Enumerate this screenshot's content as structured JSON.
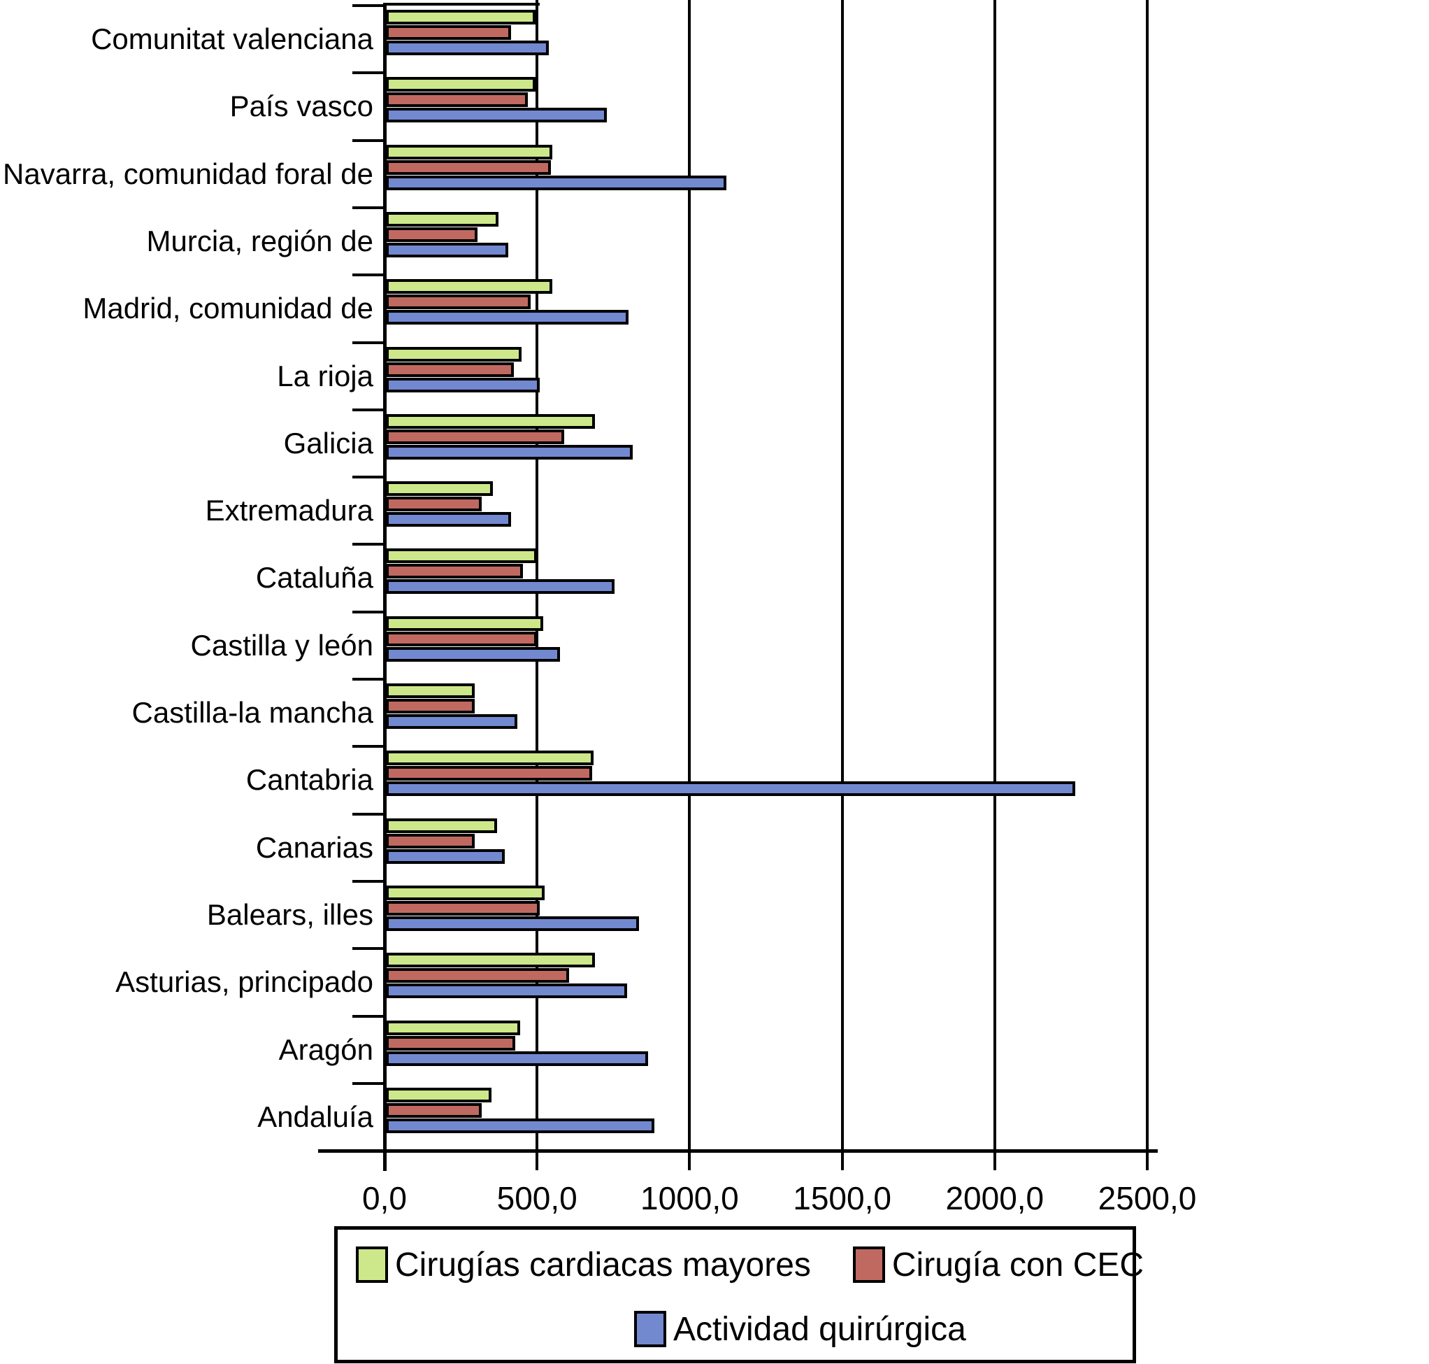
{
  "chart_data": {
    "type": "bar",
    "orientation": "horizontal",
    "title": "",
    "categories": [
      "Comunitat valenciana",
      "País vasco",
      "Navarra, comunidad foral de",
      "Murcia, región de",
      "Madrid, comunidad de",
      "La rioja",
      "Galicia",
      "Extremadura",
      "Cataluña",
      "Castilla y león",
      "Castilla-la mancha",
      "Cantabria",
      "Canarias",
      "Balears, illes",
      "Asturias, principado",
      "Aragón",
      "Andaluía"
    ],
    "series": [
      {
        "name": "Cirugías cardiacas mayores",
        "color": "#cde88a",
        "values": [
          490,
          490,
          545,
          370,
          545,
          445,
          685,
          350,
          495,
          515,
          290,
          680,
          365,
          520,
          685,
          440,
          345
        ]
      },
      {
        "name": "Cirugía con CEC",
        "color": "#c06961",
        "values": [
          410,
          465,
          540,
          300,
          475,
          420,
          585,
          315,
          450,
          495,
          290,
          675,
          290,
          505,
          600,
          425,
          315
        ]
      },
      {
        "name": "Actividad quirúrgica",
        "color": "#7289d0",
        "values": [
          535,
          725,
          1115,
          400,
          795,
          505,
          810,
          410,
          750,
          570,
          430,
          2260,
          390,
          830,
          790,
          860,
          880
        ]
      }
    ],
    "x_axis": {
      "min": 0,
      "max": 2500,
      "tick_values": [
        0,
        500,
        1000,
        1500,
        2000,
        2500
      ],
      "tick_labels": [
        "0,0",
        "500,0",
        "1000,0",
        "1500,0",
        "2000,0",
        "2500,0"
      ],
      "gridlines": [
        500,
        1000,
        1500,
        2000,
        2500
      ]
    },
    "legend_position": "bottom",
    "grid": true
  }
}
